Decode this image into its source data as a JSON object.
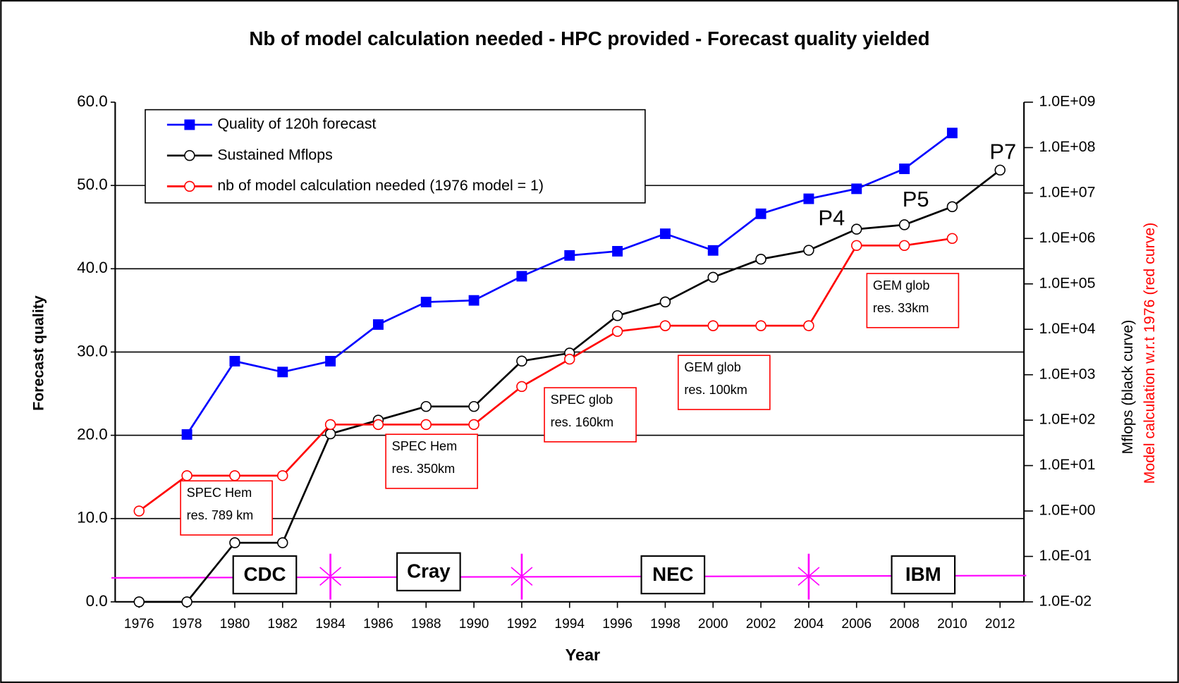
{
  "chart_data": {
    "type": "line",
    "title": "Nb of model calculation needed  -  HPC provided - Forecast quality yielded",
    "x_label": "Year",
    "y_label": "Forecast quality",
    "y2_labels": [
      "Mflops (black curve)",
      "Model calculation w.r.t 1976 (red curve)"
    ],
    "x": [
      1976,
      1978,
      1980,
      1982,
      1984,
      1986,
      1988,
      1990,
      1992,
      1994,
      1996,
      1998,
      2000,
      2002,
      2004,
      2006,
      2008,
      2010,
      2012
    ],
    "xlim": [
      1975,
      2013
    ],
    "xticks": [
      1976,
      1978,
      1980,
      1982,
      1984,
      1986,
      1988,
      1990,
      1992,
      1994,
      1996,
      1998,
      2000,
      2002,
      2004,
      2006,
      2008,
      2010,
      2012
    ],
    "ylim": [
      0,
      60
    ],
    "yticks": [
      {
        "value": 0,
        "label": "0.0"
      },
      {
        "value": 10,
        "label": "10.0"
      },
      {
        "value": 20,
        "label": "20.0"
      },
      {
        "value": 30,
        "label": "30.0"
      },
      {
        "value": 40,
        "label": "40.0"
      },
      {
        "value": 50,
        "label": "50.0"
      },
      {
        "value": 60,
        "label": "60.0"
      }
    ],
    "y2scale": "log",
    "y2lim": [
      0.01,
      1000000000
    ],
    "y2ticks": [
      {
        "value": 0.01,
        "label": "1.0E-02"
      },
      {
        "value": 0.1,
        "label": "1.0E-01"
      },
      {
        "value": 1,
        "label": "1.0E+00"
      },
      {
        "value": 10,
        "label": "1.0E+01"
      },
      {
        "value": 100,
        "label": "1.0E+02"
      },
      {
        "value": 1000,
        "label": "1.0E+03"
      },
      {
        "value": 10000,
        "label": "1.0E+04"
      },
      {
        "value": 100000,
        "label": "1.0E+05"
      },
      {
        "value": 1000000,
        "label": "1.0E+06"
      },
      {
        "value": 10000000,
        "label": "1.0E+07"
      },
      {
        "value": 100000000,
        "label": "1.0E+08"
      },
      {
        "value": 1000000000,
        "label": "1.0E+09"
      }
    ],
    "grid": true,
    "legend": "top-left",
    "series": [
      {
        "name": "Quality of 120h forecast",
        "color": "#0000ff",
        "marker": "square",
        "values": [
          null,
          20.1,
          28.9,
          27.6,
          28.9,
          33.3,
          36.0,
          36.2,
          39.1,
          41.6,
          42.1,
          44.2,
          42.2,
          46.6,
          48.4,
          49.6,
          52.0,
          56.3,
          null
        ]
      },
      {
        "name": "Sustained Mflops",
        "color": "#000000",
        "marker": "circle",
        "axis": "y2",
        "values": [
          0.01,
          0.01,
          0.2,
          0.2,
          50,
          100,
          200,
          200,
          2000,
          3000,
          20000,
          40000,
          140000,
          350000,
          550000,
          1600000,
          2000000,
          5000000,
          32000000
        ]
      },
      {
        "name": "nb of model calculation needed (1976 model = 1)",
        "color": "#ff0000",
        "marker": "circle",
        "axis": "y2",
        "values": [
          1,
          6,
          6,
          6,
          80,
          80,
          80,
          80,
          550,
          2200,
          9000,
          12000,
          12000,
          12000,
          12000,
          700000,
          700000,
          1000000,
          null
        ]
      }
    ],
    "annotations": [
      {
        "lines": [
          "SPEC Hem",
          "res. 789 km"
        ]
      },
      {
        "lines": [
          "SPEC Hem",
          "res. 350km"
        ]
      },
      {
        "lines": [
          "SPEC glob",
          "res. 160km"
        ]
      },
      {
        "lines": [
          "GEM glob",
          "res. 100km"
        ]
      },
      {
        "lines": [
          "GEM glob",
          "res. 33km"
        ]
      }
    ],
    "power_labels": [
      "P4",
      "P5",
      "P7"
    ],
    "eras": [
      "CDC",
      "Cray",
      "NEC",
      "IBM"
    ],
    "era_boundaries": [
      1984,
      1992,
      2004
    ],
    "era_color": "#ff00ff"
  }
}
